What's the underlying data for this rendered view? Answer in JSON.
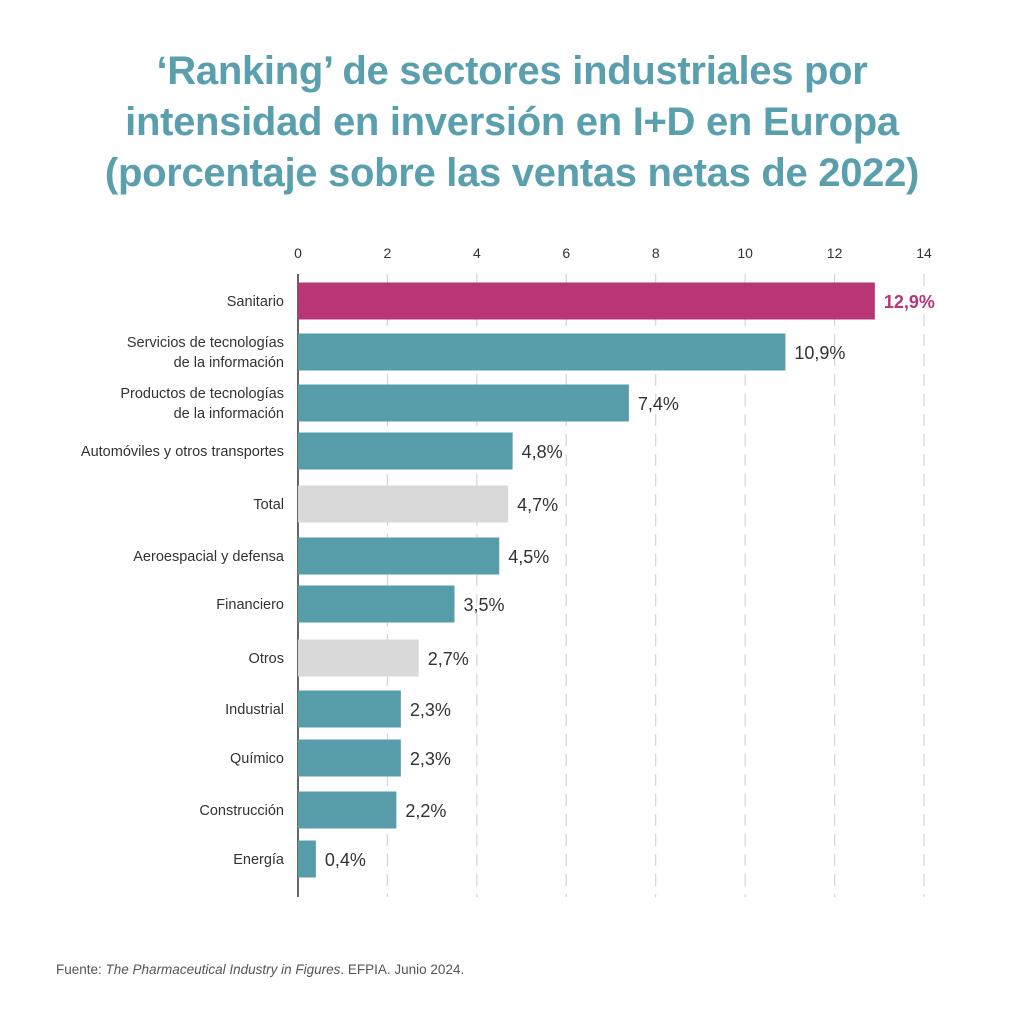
{
  "title_lines": [
    "‘Ranking’ de sectores industriales por",
    "intensidad en inversión en I+D en Europa",
    "(porcentaje sobre las ventas netas de 2022)"
  ],
  "source": {
    "prefix": "Fuente: ",
    "work": "The Pharmaceutical Industry in Figures",
    "suffix": ". EFPIA. Junio 2024."
  },
  "colors": {
    "title": "#5a9fae",
    "bar_default": "#579da9",
    "bar_highlight": "#b83576",
    "bar_neutral": "#d9d9d9",
    "label_highlight": "#b83576",
    "label_default": "#333333",
    "grid": "#d4d4d4",
    "axis": "#333333"
  },
  "chart_data": {
    "type": "bar",
    "orientation": "horizontal",
    "axis_position": "top",
    "xlim": [
      0,
      14
    ],
    "xticks": [
      0,
      2,
      4,
      6,
      8,
      10,
      12,
      14
    ],
    "grid": true,
    "unit": "%",
    "categories": [
      [
        "Sanitario"
      ],
      [
        "Servicios de tecnologías",
        "de la información"
      ],
      [
        "Productos de tecnologías",
        "de la información"
      ],
      [
        "Automóviles y otros transportes"
      ],
      [
        "Total"
      ],
      [
        "Aeroespacial y defensa"
      ],
      [
        "Financiero"
      ],
      [
        "Otros"
      ],
      [
        "Industrial"
      ],
      [
        "Químico"
      ],
      [
        "Construcción"
      ],
      [
        "Energía"
      ]
    ],
    "values": [
      12.9,
      10.9,
      7.4,
      4.8,
      4.7,
      4.5,
      3.5,
      2.7,
      2.3,
      2.3,
      2.2,
      0.4
    ],
    "value_labels": [
      "12,9%",
      "10,9%",
      "7,4%",
      "4,8%",
      "4,7%",
      "4,5%",
      "3,5%",
      "2,7%",
      "2,3%",
      "2,3%",
      "2,2%",
      "0,4%"
    ],
    "styles": [
      "highlight",
      "default",
      "default",
      "default",
      "neutral",
      "default",
      "default",
      "neutral",
      "default",
      "default",
      "default",
      "default"
    ]
  }
}
